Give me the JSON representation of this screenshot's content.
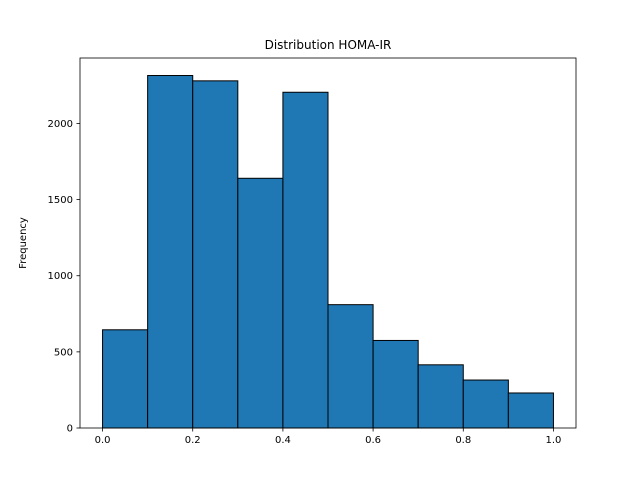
{
  "chart_data": {
    "type": "bar",
    "title": "Distribution HOMA-IR",
    "xlabel": "",
    "ylabel": "Frequency",
    "bin_edges": [
      0.0,
      0.1,
      0.2,
      0.3,
      0.4,
      0.5,
      0.6,
      0.7,
      0.8,
      0.9,
      1.0
    ],
    "values": [
      645,
      2315,
      2280,
      1640,
      2205,
      810,
      575,
      415,
      315,
      230
    ],
    "xlim": [
      -0.05,
      1.05
    ],
    "ylim": [
      0,
      2430
    ],
    "xticks": [
      0.0,
      0.2,
      0.4,
      0.6,
      0.8,
      1.0
    ],
    "xtick_labels": [
      "0.0",
      "0.2",
      "0.4",
      "0.6",
      "0.8",
      "1.0"
    ],
    "yticks": [
      0,
      500,
      1000,
      1500,
      2000
    ],
    "ytick_labels": [
      "0",
      "500",
      "1000",
      "1500",
      "2000"
    ],
    "grid": false,
    "bar_color": "#1f77b4",
    "edge_color": "#000000"
  }
}
